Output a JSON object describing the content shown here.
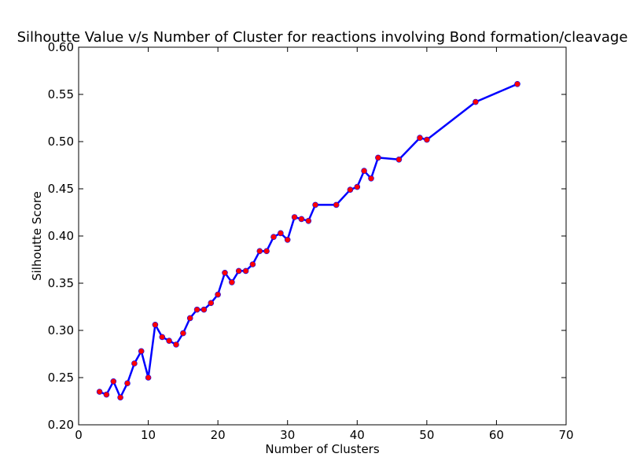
{
  "chart_data": {
    "type": "line",
    "title": "Silhoutte Value v/s Number of Cluster for reactions involving Bond formation/cleavage",
    "xlabel": "Number of Clusters",
    "ylabel": "Silhoutte Score",
    "xlim": [
      0,
      70
    ],
    "ylim": [
      0.2,
      0.6
    ],
    "xticks": [
      0,
      10,
      20,
      30,
      40,
      50,
      60,
      70
    ],
    "yticks": [
      0.2,
      0.25,
      0.3,
      0.35,
      0.4,
      0.45,
      0.5,
      0.55,
      0.6
    ],
    "ytick_labels": [
      "0.20",
      "0.25",
      "0.30",
      "0.35",
      "0.40",
      "0.45",
      "0.50",
      "0.55",
      "0.60"
    ],
    "grid": false,
    "line_color": "#0000ff",
    "marker_color": "#ff0000",
    "series": [
      {
        "x": [
          3,
          4,
          5,
          6,
          7,
          8,
          9,
          10,
          11,
          12,
          13,
          14,
          15,
          16,
          17,
          18,
          19,
          20,
          21,
          22,
          23,
          24,
          25,
          26,
          27,
          28,
          29,
          30,
          31,
          32,
          33,
          34,
          37,
          39,
          40,
          41,
          42,
          43,
          46,
          49,
          50,
          57,
          63
        ],
        "y": [
          0.235,
          0.232,
          0.246,
          0.229,
          0.244,
          0.265,
          0.278,
          0.25,
          0.306,
          0.293,
          0.289,
          0.285,
          0.297,
          0.313,
          0.322,
          0.322,
          0.329,
          0.338,
          0.361,
          0.351,
          0.363,
          0.363,
          0.37,
          0.384,
          0.384,
          0.399,
          0.403,
          0.396,
          0.42,
          0.418,
          0.416,
          0.433,
          0.433,
          0.449,
          0.452,
          0.469,
          0.461,
          0.483,
          0.481,
          0.504,
          0.502,
          0.542,
          0.561
        ]
      }
    ]
  }
}
